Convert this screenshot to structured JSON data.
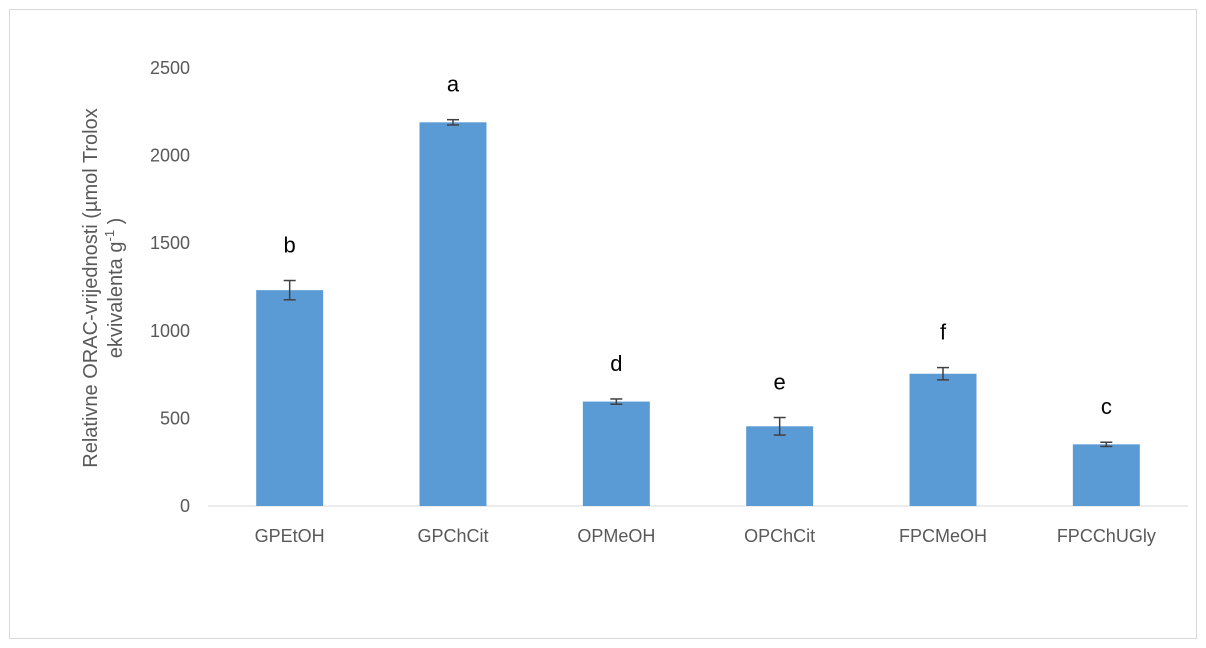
{
  "chart_data": {
    "type": "bar",
    "categories": [
      "GPEtOH",
      "GPChCit",
      "OPMeOH",
      "OPChCit",
      "FPCMeOH",
      "FPCChUGly"
    ],
    "values": [
      1232,
      2190,
      596,
      455,
      755,
      352
    ],
    "errors": [
      55,
      15,
      15,
      50,
      35,
      12
    ],
    "annotations": [
      "b",
      "a",
      "d",
      "e",
      "f",
      "c"
    ],
    "ylabel_line1": "Relativne ORAC-vrijednosti (µmol Trolox",
    "ylabel_line2_main": "ekvivalenta  g",
    "ylabel_line2_sup": "-1",
    "ylabel_line2_end": " )",
    "ylim": [
      0,
      2500
    ],
    "yticks": [
      0,
      500,
      1000,
      1500,
      2000,
      2500
    ],
    "grid": false,
    "bar_color": "#5b9bd5",
    "error_color": "#404040"
  }
}
